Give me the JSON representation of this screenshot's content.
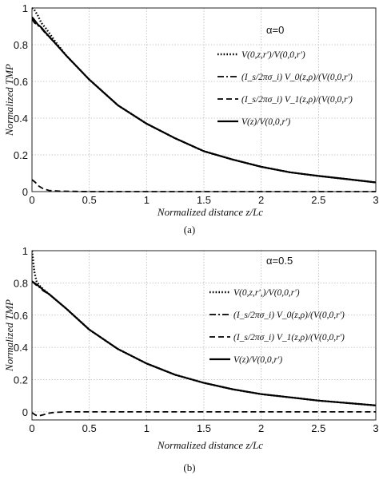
{
  "chart_data": [
    {
      "type": "line",
      "caption": "(a)",
      "annotation": "α=0",
      "xlabel": "Normalized distance z/Lc",
      "ylabel": "Normalized TMP",
      "xlim": [
        0,
        3
      ],
      "ylim": [
        0,
        1
      ],
      "xticks": [
        0,
        0.5,
        1,
        1.5,
        2,
        2.5,
        3
      ],
      "xtick_labels": [
        "0",
        "0.5",
        "1",
        "1.5",
        "2",
        "2.5",
        "3"
      ],
      "yticks": [
        0,
        0.2,
        0.4,
        0.6,
        0.8,
        1
      ],
      "ytick_labels": [
        "0",
        "0.2",
        "0.4",
        "0.6",
        "0.8",
        "1"
      ],
      "grid": true,
      "legend_position": "right",
      "series": [
        {
          "name": "V(0,z,r')/V(0,0,r')",
          "style": "dotted",
          "x": [
            0,
            0.02,
            0.05,
            0.08,
            0.12,
            0.2,
            0.3,
            0.5,
            0.75,
            1,
            1.25,
            1.5,
            1.75,
            2,
            2.25,
            2.5,
            2.75,
            3
          ],
          "y": [
            1.0,
            0.99,
            0.96,
            0.92,
            0.89,
            0.82,
            0.74,
            0.61,
            0.47,
            0.37,
            0.29,
            0.22,
            0.175,
            0.135,
            0.105,
            0.085,
            0.068,
            0.05
          ]
        },
        {
          "name": "(I_s/2πσ_i) V_0(z,ρ)/(V(0,0,r')",
          "style": "dash-dot",
          "x": [
            0,
            0.02,
            0.05,
            0.08,
            0.12,
            0.2,
            0.3,
            0.5,
            0.75,
            1,
            1.25,
            1.5,
            1.75,
            2,
            2.25,
            2.5,
            2.75,
            3
          ],
          "y": [
            0.94,
            0.92,
            0.905,
            0.89,
            0.86,
            0.81,
            0.74,
            0.61,
            0.47,
            0.37,
            0.29,
            0.22,
            0.175,
            0.135,
            0.105,
            0.085,
            0.068,
            0.05
          ]
        },
        {
          "name": "(I_s/2πσ_i) V_1(z,ρ)/(V(0,0,r')",
          "style": "dashed",
          "x": [
            0,
            0.03,
            0.06,
            0.1,
            0.15,
            0.25,
            0.5,
            1,
            1.5,
            2,
            2.5,
            3
          ],
          "y": [
            0.065,
            0.05,
            0.03,
            0.015,
            0.006,
            0.002,
            0.0,
            0.0,
            0.0,
            0.0,
            0.0,
            0.0
          ]
        },
        {
          "name": "V(z)/V(0,0,r')",
          "style": "solid",
          "x": [
            0,
            0.02,
            0.05,
            0.08,
            0.12,
            0.2,
            0.3,
            0.5,
            0.75,
            1,
            1.25,
            1.5,
            1.75,
            2,
            2.25,
            2.5,
            2.75,
            3
          ],
          "y": [
            0.95,
            0.935,
            0.91,
            0.895,
            0.865,
            0.81,
            0.74,
            0.61,
            0.47,
            0.37,
            0.29,
            0.22,
            0.175,
            0.135,
            0.105,
            0.085,
            0.068,
            0.05
          ]
        }
      ]
    },
    {
      "type": "line",
      "caption": "(b)",
      "annotation": "α=0.5",
      "xlabel": "Normalized distance z/Lc",
      "ylabel": "Normalized TMP",
      "xlim": [
        0,
        3
      ],
      "ylim": [
        -0.05,
        1
      ],
      "xticks": [
        0,
        0.5,
        1,
        1.5,
        2,
        2.5,
        3
      ],
      "xtick_labels": [
        "0",
        "0.5",
        "1",
        "1.5",
        "2",
        "2.5",
        "3"
      ],
      "yticks": [
        0,
        0.2,
        0.4,
        0.6,
        0.8,
        1
      ],
      "ytick_labels": [
        "0",
        "0.2",
        "0.4",
        "0.6",
        "0.8",
        "1"
      ],
      "grid": true,
      "legend_position": "right",
      "series": [
        {
          "name": "V(0,z,r',)/V(0,0,r')",
          "style": "dotted",
          "x": [
            0,
            0.01,
            0.02,
            0.04,
            0.07,
            0.1,
            0.2,
            0.3,
            0.5,
            0.75,
            1,
            1.25,
            1.5,
            1.75,
            2,
            2.25,
            2.5,
            2.75,
            3
          ],
          "y": [
            1.0,
            0.94,
            0.87,
            0.81,
            0.78,
            0.76,
            0.7,
            0.64,
            0.51,
            0.39,
            0.3,
            0.23,
            0.18,
            0.14,
            0.11,
            0.09,
            0.07,
            0.055,
            0.04
          ]
        },
        {
          "name": "(I_s/2πσ_i) V_0(z,ρ)/(V(0,0,r')",
          "style": "dash-dot",
          "x": [
            0,
            0.03,
            0.07,
            0.1,
            0.15,
            0.2,
            0.3,
            0.5,
            0.75,
            1,
            1.25,
            1.5,
            1.75,
            2,
            2.25,
            2.5,
            2.75,
            3
          ],
          "y": [
            0.81,
            0.79,
            0.77,
            0.75,
            0.73,
            0.7,
            0.64,
            0.51,
            0.39,
            0.3,
            0.23,
            0.18,
            0.14,
            0.11,
            0.09,
            0.07,
            0.055,
            0.04
          ]
        },
        {
          "name": "(I_s/2πσ_i) V_1(z,ρ)/(V(0,0,r')",
          "style": "dashed",
          "x": [
            0,
            0.03,
            0.06,
            0.1,
            0.15,
            0.2,
            0.3,
            0.5,
            1,
            1.5,
            2,
            2.5,
            3
          ],
          "y": [
            -0.005,
            -0.02,
            -0.025,
            -0.018,
            -0.008,
            -0.003,
            0.0,
            0.0,
            0.0,
            0.0,
            0.0,
            0.0,
            0.0
          ]
        },
        {
          "name": "V(z)/V(0,0,r')",
          "style": "solid",
          "x": [
            0,
            0.03,
            0.07,
            0.1,
            0.15,
            0.2,
            0.3,
            0.5,
            0.75,
            1,
            1.25,
            1.5,
            1.75,
            2,
            2.25,
            2.5,
            2.75,
            3
          ],
          "y": [
            0.81,
            0.795,
            0.775,
            0.755,
            0.73,
            0.7,
            0.64,
            0.51,
            0.39,
            0.3,
            0.23,
            0.18,
            0.14,
            0.11,
            0.09,
            0.07,
            0.055,
            0.04
          ]
        }
      ]
    }
  ]
}
